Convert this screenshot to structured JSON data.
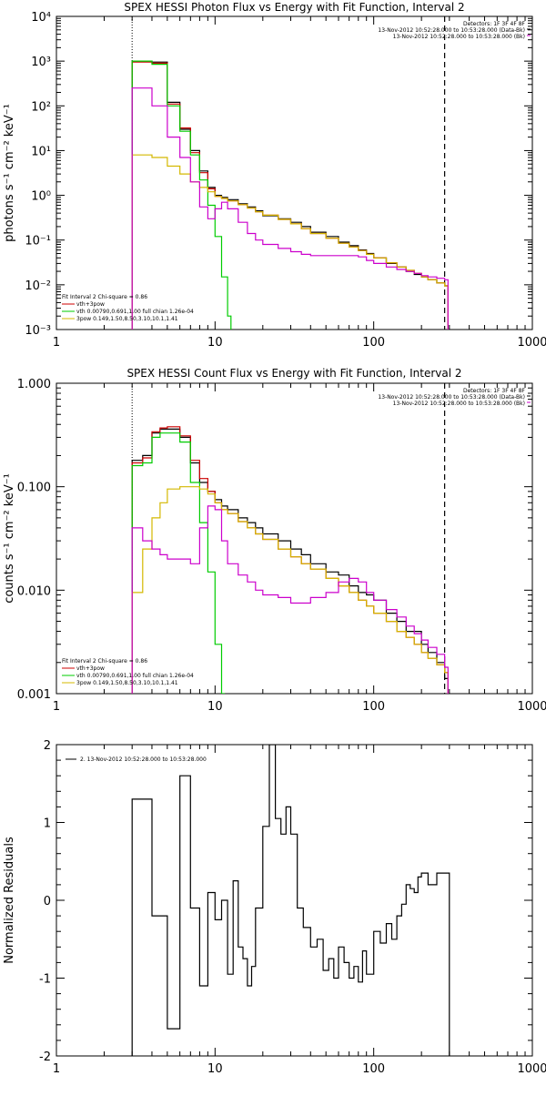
{
  "chart_data": [
    {
      "type": "line",
      "title": "SPEX HESSI Photon Flux vs Energy with Fit Function, Interval 2",
      "xlabel": "",
      "ylabel": "photons s⁻¹ cm⁻² keV⁻¹",
      "xscale": "log",
      "yscale": "log",
      "xlim": [
        1,
        1000
      ],
      "ylim": [
        0.001,
        10000
      ],
      "xticks": [
        1,
        10,
        100,
        1000
      ],
      "xtick_labels": [
        "1",
        "10",
        "100",
        "1000"
      ],
      "yticks": [
        0.001,
        0.01,
        0.1,
        1,
        10,
        100,
        1000,
        10000
      ],
      "ytick_labels": [
        "10⁻³",
        "10⁻²",
        "10⁻¹",
        "10⁰",
        "10¹",
        "10²",
        "10³",
        "10⁴"
      ],
      "fit_range": [
        3,
        280
      ],
      "legend_top_right": [
        {
          "text": "Detectors: 1F 3F 4F 8F",
          "color": "#000000"
        },
        {
          "text": "13-Nov-2012 10:52:28.000 to 10:53:28.000 (Data-Bk)",
          "color": "#000000"
        },
        {
          "text": "13-Nov-2012 10:52:28.000 to 10:53:28.000 (Bk)",
          "color": "#cc00cc"
        }
      ],
      "legend_bottom_left": [
        {
          "text": "Fit Interval 2   Chi-square = 0.86",
          "color": "#000000"
        },
        {
          "text": "vth+3pow",
          "color": "#cc0000"
        },
        {
          "text": "vth 0.00790,0.691,1.00  full chian 1.26e-04",
          "color": "#00cc00"
        },
        {
          "text": "3pow 0.149,1.50,8.50,3.10,10.1,1.41",
          "color": "#d4b800"
        }
      ],
      "series": [
        {
          "name": "Data-Bk",
          "color": "#000000",
          "x": [
            3,
            4,
            5,
            6,
            7,
            8,
            9,
            10,
            11,
            12,
            14,
            16,
            18,
            20,
            25,
            30,
            35,
            40,
            50,
            60,
            70,
            80,
            90,
            100,
            120,
            140,
            160,
            180,
            200,
            220,
            250,
            280
          ],
          "y": [
            1000,
            950,
            120,
            30,
            10,
            3.5,
            1.5,
            1.0,
            0.9,
            0.8,
            0.65,
            0.55,
            0.45,
            0.35,
            0.3,
            0.25,
            0.2,
            0.15,
            0.12,
            0.09,
            0.075,
            0.06,
            0.05,
            0.04,
            0.03,
            0.025,
            0.02,
            0.017,
            0.015,
            0.013,
            0.011,
            0.0095
          ]
        },
        {
          "name": "vth+3pow",
          "color": "#cc0000",
          "x": [
            3,
            4,
            5,
            6,
            7,
            8,
            9,
            10,
            11,
            12,
            14,
            16,
            18,
            20,
            25,
            30,
            35,
            40,
            50,
            60,
            70,
            80,
            90,
            100,
            120,
            140,
            160,
            180,
            200,
            220,
            250,
            280
          ],
          "y": [
            950,
            900,
            110,
            32,
            9,
            3.2,
            1.4,
            0.95,
            0.85,
            0.75,
            0.62,
            0.52,
            0.43,
            0.36,
            0.29,
            0.23,
            0.18,
            0.14,
            0.11,
            0.085,
            0.07,
            0.058,
            0.048,
            0.04,
            0.031,
            0.025,
            0.021,
            0.018,
            0.015,
            0.013,
            0.011,
            0.0095
          ]
        },
        {
          "name": "vth",
          "color": "#00cc00",
          "x": [
            3,
            4,
            5,
            6,
            7,
            8,
            9,
            10,
            11,
            12
          ],
          "y": [
            1000,
            850,
            100,
            27,
            8,
            2.2,
            0.6,
            0.12,
            0.015,
            0.002
          ]
        },
        {
          "name": "3pow",
          "color": "#d4b800",
          "x": [
            3,
            4,
            5,
            6,
            7,
            8,
            9,
            10,
            11,
            12,
            14,
            16,
            18,
            20,
            25,
            30,
            35,
            40,
            50,
            60,
            70,
            80,
            90,
            100,
            120,
            140,
            160,
            180,
            200,
            220,
            250,
            280
          ],
          "y": [
            8,
            7,
            4.5,
            3,
            2,
            1.5,
            1.2,
            0.95,
            0.85,
            0.75,
            0.62,
            0.52,
            0.43,
            0.36,
            0.29,
            0.23,
            0.18,
            0.14,
            0.11,
            0.085,
            0.07,
            0.058,
            0.048,
            0.04,
            0.031,
            0.025,
            0.021,
            0.018,
            0.015,
            0.013,
            0.011,
            0.0095
          ]
        },
        {
          "name": "Bk",
          "color": "#cc00cc",
          "x": [
            3,
            4,
            5,
            6,
            7,
            8,
            9,
            10,
            11,
            12,
            14,
            16,
            18,
            20,
            25,
            30,
            35,
            40,
            50,
            60,
            70,
            80,
            90,
            100,
            120,
            140,
            160,
            180,
            200,
            220,
            250,
            280
          ],
          "y": [
            250,
            100,
            20,
            7,
            2,
            0.55,
            0.3,
            0.5,
            0.7,
            0.5,
            0.25,
            0.14,
            0.1,
            0.08,
            0.065,
            0.055,
            0.048,
            0.045,
            0.045,
            0.045,
            0.045,
            0.042,
            0.035,
            0.03,
            0.025,
            0.022,
            0.02,
            0.018,
            0.016,
            0.015,
            0.014,
            0.013
          ]
        }
      ]
    },
    {
      "type": "line",
      "title": "SPEX HESSI Count Flux vs Energy with Fit Function, Interval 2",
      "xlabel": "",
      "ylabel": "counts s⁻¹ cm⁻² keV⁻¹",
      "xscale": "log",
      "yscale": "log",
      "xlim": [
        1,
        1000
      ],
      "ylim": [
        0.001,
        1.0
      ],
      "xticks": [
        1,
        10,
        100,
        1000
      ],
      "xtick_labels": [
        "1",
        "10",
        "100",
        "1000"
      ],
      "yticks": [
        0.001,
        0.01,
        0.1,
        1.0
      ],
      "ytick_labels": [
        "0.001",
        "0.010",
        "0.100",
        "1.000"
      ],
      "fit_range": [
        3,
        280
      ],
      "legend_top_right": [
        {
          "text": "Detectors: 1F 3F 4F 8F",
          "color": "#000000"
        },
        {
          "text": "13-Nov-2012 10:52:28.000 to 10:53:28.000 (Data-Bk)",
          "color": "#000000"
        },
        {
          "text": "13-Nov-2012 10:52:28.000 to 10:53:28.000 (Bk)",
          "color": "#cc00cc"
        }
      ],
      "legend_bottom_left": [
        {
          "text": "Fit Interval 2   Chi-square = 0.86",
          "color": "#000000"
        },
        {
          "text": "vth+3pow",
          "color": "#cc0000"
        },
        {
          "text": "vth 0.00790,0.691,1.00  full chian 1.26e-04",
          "color": "#00cc00"
        },
        {
          "text": "3pow 0.149,1.50,8.50,3.10,10.1,1.41",
          "color": "#d4b800"
        }
      ],
      "series": [
        {
          "name": "Data-Bk",
          "color": "#000000",
          "x": [
            3,
            3.5,
            4,
            4.5,
            5,
            6,
            7,
            8,
            9,
            10,
            11,
            12,
            14,
            16,
            18,
            20,
            25,
            30,
            35,
            40,
            50,
            60,
            70,
            80,
            90,
            100,
            120,
            140,
            160,
            180,
            200,
            220,
            250,
            280
          ],
          "y": [
            0.18,
            0.2,
            0.33,
            0.36,
            0.36,
            0.3,
            0.17,
            0.11,
            0.09,
            0.075,
            0.065,
            0.06,
            0.05,
            0.045,
            0.04,
            0.035,
            0.03,
            0.025,
            0.022,
            0.018,
            0.015,
            0.014,
            0.011,
            0.0095,
            0.009,
            0.008,
            0.006,
            0.005,
            0.004,
            0.004,
            0.003,
            0.0025,
            0.002,
            0.0014
          ]
        },
        {
          "name": "vth+3pow",
          "color": "#cc0000",
          "x": [
            3,
            3.5,
            4,
            4.5,
            5,
            6,
            7,
            8,
            9,
            10,
            11,
            12,
            14,
            16,
            18,
            20,
            25,
            30,
            35,
            40,
            50,
            60,
            70,
            80,
            90,
            100,
            120,
            140,
            160,
            180,
            200,
            220,
            250,
            280
          ],
          "y": [
            0.17,
            0.19,
            0.34,
            0.37,
            0.38,
            0.31,
            0.18,
            0.12,
            0.09,
            0.07,
            0.06,
            0.055,
            0.046,
            0.04,
            0.035,
            0.031,
            0.025,
            0.021,
            0.018,
            0.016,
            0.013,
            0.011,
            0.0095,
            0.008,
            0.007,
            0.006,
            0.005,
            0.004,
            0.0035,
            0.003,
            0.0025,
            0.0022,
            0.0019,
            0.0016
          ]
        },
        {
          "name": "vth",
          "color": "#00cc00",
          "x": [
            3,
            3.5,
            4,
            4.5,
            5,
            6,
            7,
            8,
            9,
            10,
            11
          ],
          "y": [
            0.16,
            0.17,
            0.3,
            0.33,
            0.33,
            0.27,
            0.11,
            0.045,
            0.015,
            0.003,
            0.001
          ]
        },
        {
          "name": "3pow",
          "color": "#d4b800",
          "x": [
            3,
            3.5,
            4,
            4.5,
            5,
            6,
            7,
            8,
            9,
            10,
            11,
            12,
            14,
            16,
            18,
            20,
            25,
            30,
            35,
            40,
            50,
            60,
            70,
            80,
            90,
            100,
            120,
            140,
            160,
            180,
            200,
            220,
            250,
            280
          ],
          "y": [
            0.0095,
            0.025,
            0.05,
            0.07,
            0.095,
            0.1,
            0.1,
            0.095,
            0.085,
            0.07,
            0.06,
            0.055,
            0.046,
            0.04,
            0.035,
            0.031,
            0.025,
            0.021,
            0.018,
            0.016,
            0.013,
            0.011,
            0.0095,
            0.008,
            0.007,
            0.006,
            0.005,
            0.004,
            0.0035,
            0.003,
            0.0025,
            0.0022,
            0.0019,
            0.0016
          ]
        },
        {
          "name": "Bk",
          "color": "#cc00cc",
          "x": [
            3,
            3.5,
            4,
            4.5,
            5,
            6,
            7,
            8,
            9,
            10,
            11,
            12,
            14,
            16,
            18,
            20,
            25,
            30,
            35,
            40,
            50,
            60,
            70,
            80,
            90,
            100,
            120,
            140,
            160,
            180,
            200,
            220,
            250,
            280
          ],
          "y": [
            0.04,
            0.03,
            0.025,
            0.022,
            0.02,
            0.02,
            0.018,
            0.04,
            0.065,
            0.06,
            0.03,
            0.018,
            0.014,
            0.012,
            0.01,
            0.009,
            0.0085,
            0.0075,
            0.0075,
            0.0085,
            0.0095,
            0.012,
            0.013,
            0.012,
            0.0095,
            0.008,
            0.0065,
            0.0055,
            0.0045,
            0.0038,
            0.0033,
            0.0028,
            0.0024,
            0.0018
          ]
        }
      ]
    },
    {
      "type": "line",
      "title": "",
      "xlabel": "",
      "ylabel": "Normalized Residuals",
      "xscale": "log",
      "yscale": "linear",
      "xlim": [
        1,
        1000
      ],
      "ylim": [
        -2,
        2
      ],
      "xticks": [
        1,
        10,
        100,
        1000
      ],
      "xtick_labels": [
        "1",
        "10",
        "100",
        "1000"
      ],
      "yticks": [
        -2,
        -1,
        0,
        1,
        2
      ],
      "ytick_labels": [
        "-2",
        "-1",
        "0",
        "1",
        "2"
      ],
      "legend_top_left": [
        {
          "text": "2. 13-Nov-2012 10:52:28.000 to 10:53:28.000",
          "color": "#000000"
        }
      ],
      "series": [
        {
          "name": "2. 13-Nov-2012 10:52:28.000 to 10:53:28.000",
          "color": "#000000",
          "x": [
            3,
            4,
            5,
            6,
            7,
            8,
            9,
            10,
            11,
            12,
            13,
            14,
            15,
            16,
            17,
            18,
            20,
            22,
            24,
            26,
            28,
            30,
            33,
            36,
            40,
            44,
            48,
            52,
            56,
            60,
            65,
            70,
            75,
            80,
            85,
            90,
            100,
            110,
            120,
            130,
            140,
            150,
            160,
            170,
            180,
            190,
            200,
            220,
            250,
            280
          ],
          "x_end": 300,
          "y": [
            1.3,
            -0.2,
            -1.65,
            1.6,
            -0.1,
            -1.1,
            0.1,
            -0.25,
            0.0,
            -0.95,
            0.25,
            -0.6,
            -0.75,
            -1.1,
            -0.85,
            -0.1,
            0.95,
            2.0,
            1.05,
            0.85,
            1.2,
            0.85,
            -0.1,
            -0.35,
            -0.6,
            -0.5,
            -0.9,
            -0.75,
            -1.0,
            -0.6,
            -0.8,
            -1.0,
            -0.85,
            -1.05,
            -0.65,
            -0.95,
            -0.4,
            -0.55,
            -0.3,
            -0.5,
            -0.2,
            -0.05,
            0.2,
            0.15,
            0.1,
            0.3,
            0.35,
            0.2,
            0.35,
            0.35
          ]
        }
      ]
    }
  ],
  "colors": {
    "data": "#000000",
    "total_fit": "#cc0000",
    "vth": "#00cc00",
    "pow": "#d4b800",
    "background": "#cc00cc"
  }
}
